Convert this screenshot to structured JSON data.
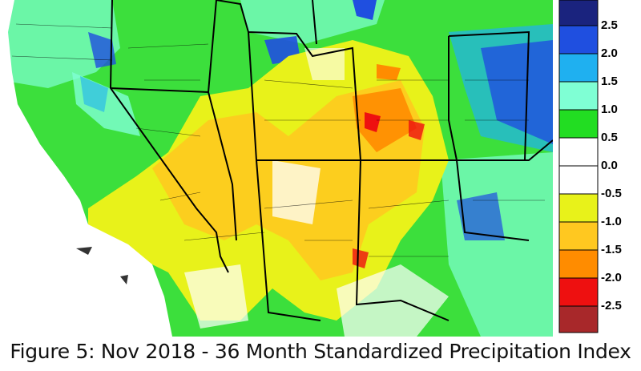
{
  "caption": "Figure 5: Nov 2018 - 36 Month Standardized Precipitation Index",
  "legend": {
    "labels": [
      "2.5",
      "2.0",
      "1.5",
      "1.0",
      "0.5",
      "0.0",
      "-0.5",
      "-1.0",
      "-1.5",
      "-2.0",
      "-2.5"
    ],
    "colors": [
      "#1a237e",
      "#1f4fe0",
      "#1fb0f0",
      "#7fffd4",
      "#22dd22",
      "#ffffff",
      "#ffffff",
      "#e8f21a",
      "#ffc820",
      "#ff8c00",
      "#ee1010",
      "#a8282a"
    ]
  }
}
